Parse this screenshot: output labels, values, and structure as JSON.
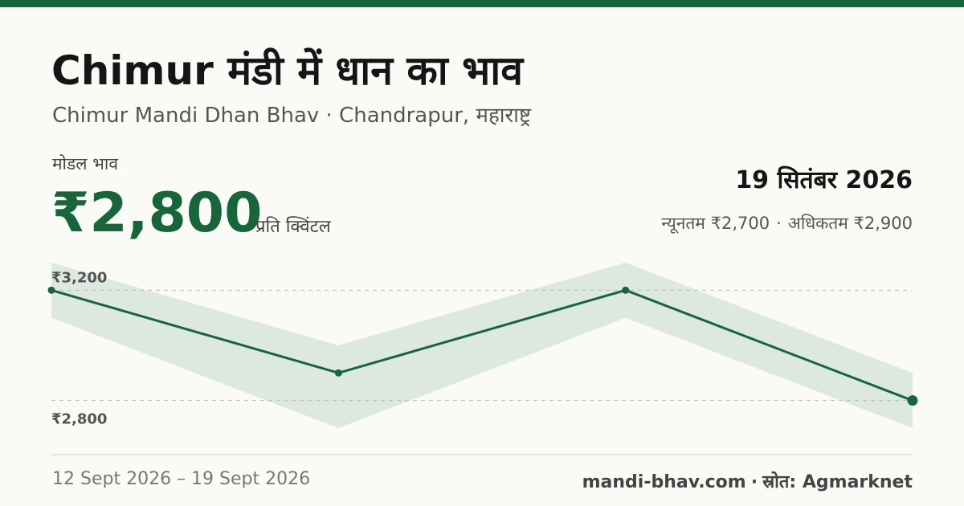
{
  "header": {
    "title": "Chimur मंडी में धान का भाव",
    "subtitle": "Chimur Mandi Dhan Bhav · Chandrapur, महाराष्ट्र"
  },
  "summary": {
    "modal_label": "मोडल भाव",
    "modal_price": "₹2,800",
    "unit": "प्रति क्विंटल",
    "date": "19 सितंबर 2026",
    "min_text": "न्यूनतम ₹2,700",
    "separator": "·",
    "max_text": "अधिकतम ₹2,900"
  },
  "chart_data": {
    "type": "line",
    "x": [
      "12 Sept 2026",
      "",
      "",
      "19 Sept 2026"
    ],
    "series": [
      {
        "values": [
          3200,
          2900,
          3200,
          2800
        ]
      }
    ],
    "band": {
      "lower": [
        3100,
        2700,
        3100,
        2700
      ],
      "upper": [
        3300,
        3000,
        3300,
        2900
      ]
    },
    "gridlines": [
      3200,
      2800
    ],
    "tick_labels": [
      "₹3,200",
      "₹2,800"
    ],
    "ylim": [
      2700,
      3300
    ],
    "grid": true,
    "colors": {
      "line": "#17663a",
      "band": "#dde8e0",
      "grid": "#bdbdbd"
    }
  },
  "footer": {
    "range": "12 Sept 2026 – 19 Sept 2026",
    "site": "mandi-bhav.com",
    "separator": "·",
    "source": "स्रोत: Agmarknet"
  }
}
